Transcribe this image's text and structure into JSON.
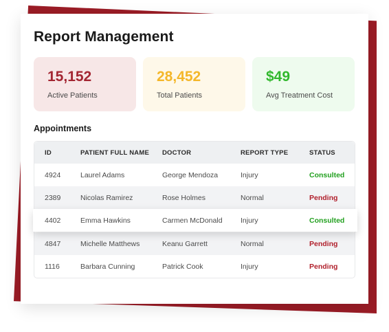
{
  "title": "Report Management",
  "stats": [
    {
      "value": "15,152",
      "label": "Active Patients",
      "color": "#a32632",
      "bg": "#f7e7e7"
    },
    {
      "value": "28,452",
      "label": "Total Patients",
      "color": "#f4b72a",
      "bg": "#fef8e9"
    },
    {
      "value": "$49",
      "label": "Avg Treatment Cost",
      "color": "#31b82d",
      "bg": "#eefbee"
    }
  ],
  "appointments": {
    "title": "Appointments",
    "columns": [
      "ID",
      "PATIENT FULL NAME",
      "DOCTOR",
      "REPORT TYPE",
      "STATUS"
    ],
    "rows": [
      {
        "id": "4924",
        "name": "Laurel Adams",
        "doctor": "George Mendoza",
        "type": "Injury",
        "status": "Consulted"
      },
      {
        "id": "2389",
        "name": "Nicolas Ramirez",
        "doctor": "Rose Holmes",
        "type": "Normal",
        "status": "Pending"
      },
      {
        "id": "4402",
        "name": "Emma Hawkins",
        "doctor": "Carmen McDonald",
        "type": "Injury",
        "status": "Consulted"
      },
      {
        "id": "4847",
        "name": "Michelle Matthews",
        "doctor": "Keanu Garrett",
        "type": "Normal",
        "status": "Pending"
      },
      {
        "id": "1116",
        "name": "Barbara Cunning",
        "doctor": "Patrick Cook",
        "type": "Injury",
        "status": "Pending"
      }
    ],
    "status_colors": {
      "Consulted": "#22a01f",
      "Pending": "#b01f2b"
    }
  },
  "colors": {
    "backdrop": "#9b1c26"
  }
}
